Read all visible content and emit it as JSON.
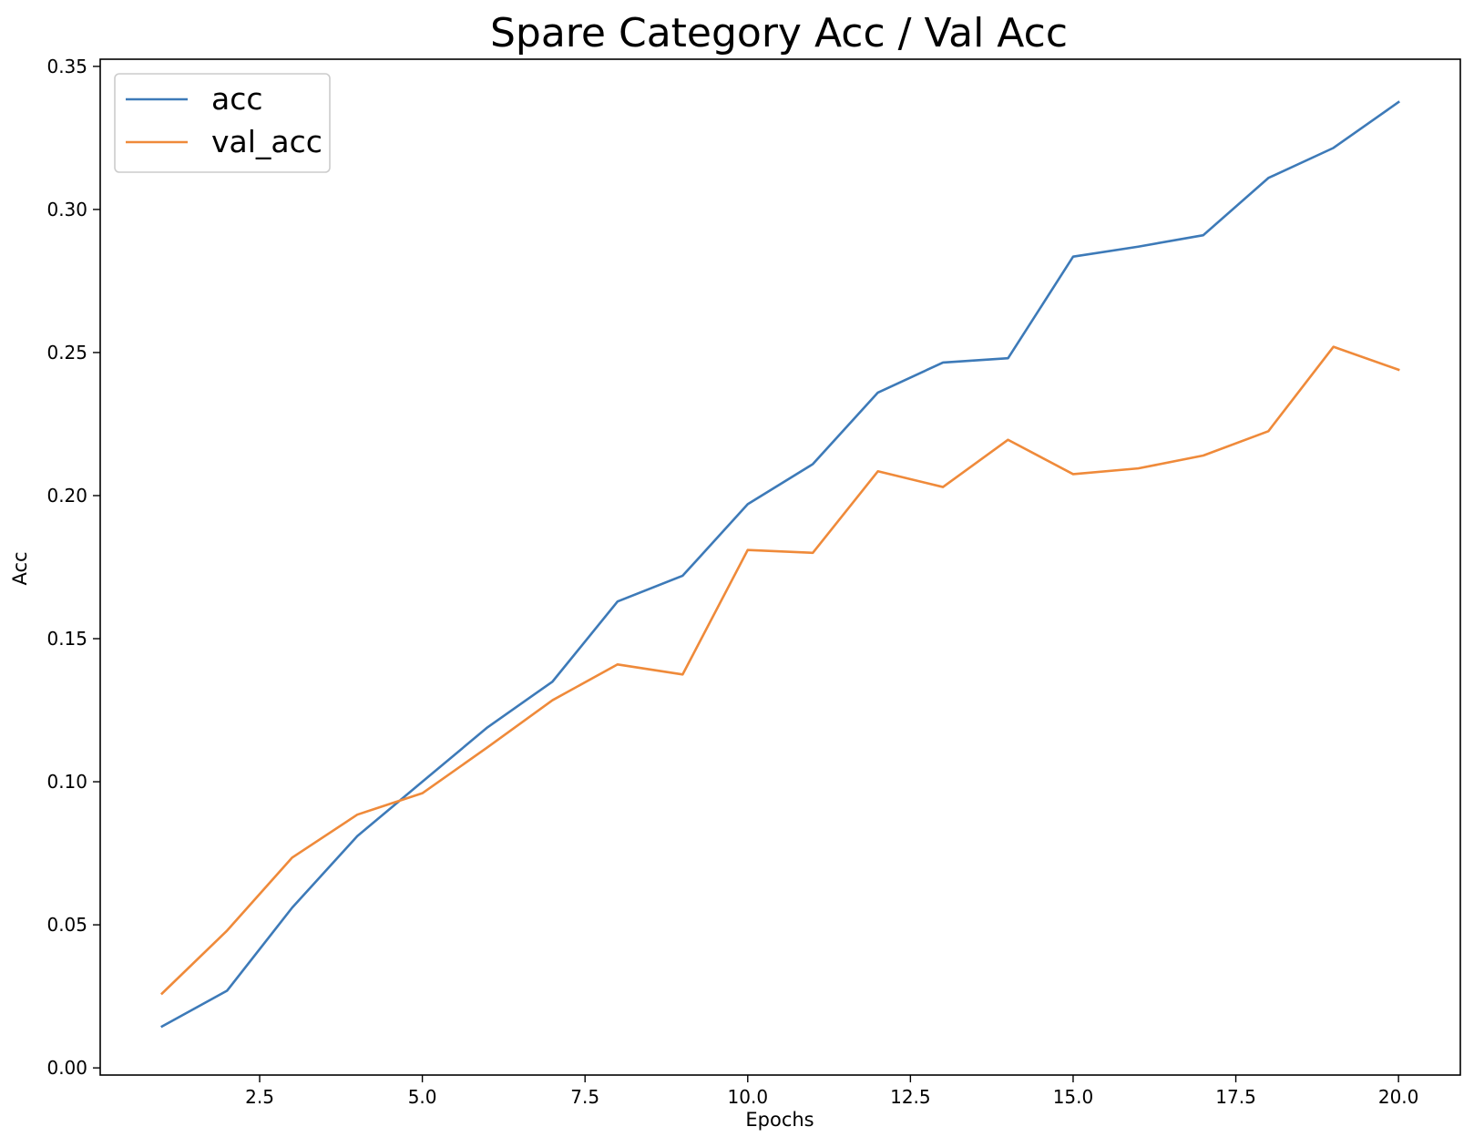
{
  "chart_data": {
    "type": "line",
    "title": "Spare Category Acc / Val Acc",
    "xlabel": "Epochs",
    "ylabel": "Acc",
    "x": [
      1,
      2,
      3,
      4,
      5,
      6,
      7,
      8,
      9,
      10,
      11,
      12,
      13,
      14,
      15,
      16,
      17,
      18,
      19,
      20
    ],
    "series": [
      {
        "name": "acc",
        "color": "#3d7ab8",
        "values": [
          0.0145,
          0.027,
          0.056,
          0.081,
          0.1,
          0.119,
          0.135,
          0.163,
          0.172,
          0.197,
          0.211,
          0.236,
          0.2465,
          0.248,
          0.2835,
          0.287,
          0.291,
          0.311,
          0.3215,
          0.3375
        ]
      },
      {
        "name": "val_acc",
        "color": "#ef8a3a",
        "values": [
          0.026,
          0.048,
          0.0735,
          0.0885,
          0.096,
          0.112,
          0.1285,
          0.141,
          0.1375,
          0.181,
          0.18,
          0.2085,
          0.203,
          0.2195,
          0.2075,
          0.2095,
          0.214,
          0.2225,
          0.252,
          0.244
        ]
      }
    ],
    "xlim": [
      0.05,
      20.95
    ],
    "ylim": [
      -0.0025,
      0.3525
    ],
    "xticks": [
      2.5,
      5.0,
      7.5,
      10.0,
      12.5,
      15.0,
      17.5,
      20.0
    ],
    "xtick_labels": [
      "2.5",
      "5.0",
      "7.5",
      "10.0",
      "12.5",
      "15.0",
      "17.5",
      "20.0"
    ],
    "yticks": [
      0.0,
      0.05,
      0.1,
      0.15,
      0.2,
      0.25,
      0.3,
      0.35
    ],
    "ytick_labels": [
      "0.00",
      "0.05",
      "0.10",
      "0.15",
      "0.20",
      "0.25",
      "0.30",
      "0.35"
    ],
    "grid": false,
    "legend_position": "top-left"
  }
}
